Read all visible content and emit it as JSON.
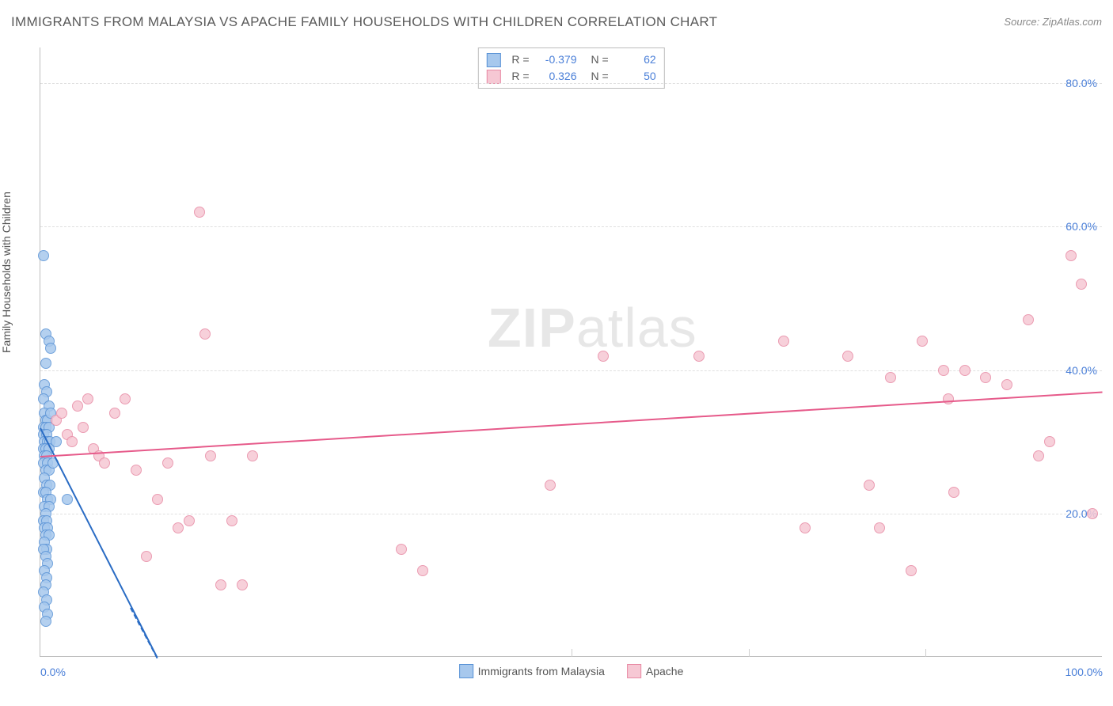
{
  "title": "IMMIGRANTS FROM MALAYSIA VS APACHE FAMILY HOUSEHOLDS WITH CHILDREN CORRELATION CHART",
  "source_label": "Source:",
  "source_name": "ZipAtlas.com",
  "ylabel": "Family Households with Children",
  "watermark_bold": "ZIP",
  "watermark_rest": "atlas",
  "chart": {
    "type": "scatter",
    "background_color": "#ffffff",
    "grid_color": "#e0e0e0",
    "axis_color": "#bdbdbd",
    "tick_label_color": "#4a7fd8",
    "xlim": [
      0,
      100
    ],
    "ylim": [
      0,
      85
    ],
    "yticks": [
      20,
      40,
      60,
      80
    ],
    "ytick_labels": [
      "20.0%",
      "40.0%",
      "60.0%",
      "80.0%"
    ],
    "xticks_minor": [
      50,
      66.7,
      83.3
    ],
    "xtick_labels": [
      {
        "pos": 0,
        "label": "0.0%"
      },
      {
        "pos": 100,
        "label": "100.0%"
      }
    ],
    "series": [
      {
        "name": "Immigrants from Malaysia",
        "legend_label": "Immigrants from Malaysia",
        "marker_fill": "#a7c8ed",
        "marker_stroke": "#5a93d6",
        "line_color": "#2a6cc4",
        "R": "-0.379",
        "N": "62",
        "regression": {
          "x1": 0,
          "y1": 32,
          "x2": 11,
          "y2": 0
        },
        "regression_dash": {
          "x1": 8.5,
          "y1": 7,
          "x2": 11,
          "y2": 0
        },
        "points": [
          {
            "x": 0.3,
            "y": 56
          },
          {
            "x": 0.5,
            "y": 45
          },
          {
            "x": 0.8,
            "y": 44
          },
          {
            "x": 1.0,
            "y": 43
          },
          {
            "x": 0.5,
            "y": 41
          },
          {
            "x": 0.4,
            "y": 38
          },
          {
            "x": 0.6,
            "y": 37
          },
          {
            "x": 0.3,
            "y": 36
          },
          {
            "x": 0.8,
            "y": 35
          },
          {
            "x": 0.4,
            "y": 34
          },
          {
            "x": 0.5,
            "y": 33
          },
          {
            "x": 0.7,
            "y": 33
          },
          {
            "x": 0.3,
            "y": 32
          },
          {
            "x": 0.5,
            "y": 32
          },
          {
            "x": 0.8,
            "y": 32
          },
          {
            "x": 0.3,
            "y": 31
          },
          {
            "x": 0.6,
            "y": 31
          },
          {
            "x": 0.4,
            "y": 30
          },
          {
            "x": 0.7,
            "y": 30
          },
          {
            "x": 0.9,
            "y": 30
          },
          {
            "x": 0.3,
            "y": 29
          },
          {
            "x": 0.5,
            "y": 29
          },
          {
            "x": 0.8,
            "y": 29
          },
          {
            "x": 0.4,
            "y": 28
          },
          {
            "x": 0.6,
            "y": 28
          },
          {
            "x": 0.3,
            "y": 27
          },
          {
            "x": 0.7,
            "y": 27
          },
          {
            "x": 0.5,
            "y": 26
          },
          {
            "x": 0.8,
            "y": 26
          },
          {
            "x": 0.4,
            "y": 25
          },
          {
            "x": 0.6,
            "y": 24
          },
          {
            "x": 0.9,
            "y": 24
          },
          {
            "x": 0.3,
            "y": 23
          },
          {
            "x": 0.5,
            "y": 23
          },
          {
            "x": 0.7,
            "y": 22
          },
          {
            "x": 1.0,
            "y": 22
          },
          {
            "x": 0.4,
            "y": 21
          },
          {
            "x": 0.8,
            "y": 21
          },
          {
            "x": 0.5,
            "y": 20
          },
          {
            "x": 0.3,
            "y": 19
          },
          {
            "x": 0.6,
            "y": 19
          },
          {
            "x": 0.4,
            "y": 18
          },
          {
            "x": 0.7,
            "y": 18
          },
          {
            "x": 0.5,
            "y": 17
          },
          {
            "x": 0.8,
            "y": 17
          },
          {
            "x": 0.4,
            "y": 16
          },
          {
            "x": 0.6,
            "y": 15
          },
          {
            "x": 0.3,
            "y": 15
          },
          {
            "x": 0.5,
            "y": 14
          },
          {
            "x": 0.7,
            "y": 13
          },
          {
            "x": 0.4,
            "y": 12
          },
          {
            "x": 0.6,
            "y": 11
          },
          {
            "x": 0.5,
            "y": 10
          },
          {
            "x": 0.3,
            "y": 9
          },
          {
            "x": 0.6,
            "y": 8
          },
          {
            "x": 0.4,
            "y": 7
          },
          {
            "x": 0.7,
            "y": 6
          },
          {
            "x": 0.5,
            "y": 5
          },
          {
            "x": 1.5,
            "y": 30
          },
          {
            "x": 2.5,
            "y": 22
          },
          {
            "x": 1.2,
            "y": 27
          },
          {
            "x": 1.0,
            "y": 34
          }
        ]
      },
      {
        "name": "Apache",
        "legend_label": "Apache",
        "marker_fill": "#f6c8d4",
        "marker_stroke": "#e88ba5",
        "line_color": "#e65a8a",
        "R": "0.326",
        "N": "50",
        "regression": {
          "x1": 0,
          "y1": 28,
          "x2": 100,
          "y2": 37
        },
        "points": [
          {
            "x": 1.5,
            "y": 33
          },
          {
            "x": 2,
            "y": 34
          },
          {
            "x": 2.5,
            "y": 31
          },
          {
            "x": 3,
            "y": 30
          },
          {
            "x": 3.5,
            "y": 35
          },
          {
            "x": 4,
            "y": 32
          },
          {
            "x": 4.5,
            "y": 36
          },
          {
            "x": 5,
            "y": 29
          },
          {
            "x": 5.5,
            "y": 28
          },
          {
            "x": 6,
            "y": 27
          },
          {
            "x": 7,
            "y": 34
          },
          {
            "x": 8,
            "y": 36
          },
          {
            "x": 9,
            "y": 26
          },
          {
            "x": 10,
            "y": 14
          },
          {
            "x": 11,
            "y": 22
          },
          {
            "x": 12,
            "y": 27
          },
          {
            "x": 13,
            "y": 18
          },
          {
            "x": 14,
            "y": 19
          },
          {
            "x": 15,
            "y": 62
          },
          {
            "x": 15.5,
            "y": 45
          },
          {
            "x": 16,
            "y": 28
          },
          {
            "x": 17,
            "y": 10
          },
          {
            "x": 18,
            "y": 19
          },
          {
            "x": 19,
            "y": 10
          },
          {
            "x": 20,
            "y": 28
          },
          {
            "x": 34,
            "y": 15
          },
          {
            "x": 36,
            "y": 12
          },
          {
            "x": 48,
            "y": 24
          },
          {
            "x": 53,
            "y": 42
          },
          {
            "x": 62,
            "y": 42
          },
          {
            "x": 70,
            "y": 44
          },
          {
            "x": 72,
            "y": 18
          },
          {
            "x": 76,
            "y": 42
          },
          {
            "x": 78,
            "y": 24
          },
          {
            "x": 79,
            "y": 18
          },
          {
            "x": 80,
            "y": 39
          },
          {
            "x": 82,
            "y": 12
          },
          {
            "x": 83,
            "y": 44
          },
          {
            "x": 85,
            "y": 40
          },
          {
            "x": 85.5,
            "y": 36
          },
          {
            "x": 86,
            "y": 23
          },
          {
            "x": 87,
            "y": 40
          },
          {
            "x": 89,
            "y": 39
          },
          {
            "x": 91,
            "y": 38
          },
          {
            "x": 93,
            "y": 47
          },
          {
            "x": 94,
            "y": 28
          },
          {
            "x": 95,
            "y": 30
          },
          {
            "x": 97,
            "y": 56
          },
          {
            "x": 98,
            "y": 52
          },
          {
            "x": 99,
            "y": 20
          }
        ]
      }
    ]
  }
}
